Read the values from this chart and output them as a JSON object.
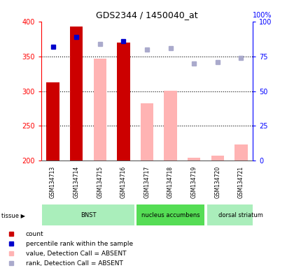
{
  "title": "GDS2344 / 1450040_at",
  "samples": [
    "GSM134713",
    "GSM134714",
    "GSM134715",
    "GSM134716",
    "GSM134717",
    "GSM134718",
    "GSM134719",
    "GSM134720",
    "GSM134721"
  ],
  "count_present": [
    313,
    393,
    null,
    370,
    null,
    null,
    null,
    null,
    null
  ],
  "count_absent": [
    null,
    null,
    347,
    null,
    283,
    301,
    204,
    207,
    223
  ],
  "rank_present_pct": [
    82,
    89,
    null,
    86,
    null,
    null,
    null,
    null,
    null
  ],
  "rank_absent_pct": [
    null,
    null,
    84,
    null,
    80,
    81,
    70,
    71,
    74
  ],
  "ylim_left": [
    200,
    400
  ],
  "yticks_left": [
    200,
    250,
    300,
    350,
    400
  ],
  "yticks_right": [
    0,
    25,
    50,
    75,
    100
  ],
  "count_color_present": "#cc0000",
  "count_color_absent": "#ffb3b3",
  "rank_color_present": "#0000cc",
  "rank_color_absent": "#aaaacc",
  "tissues": [
    {
      "label": "BNST",
      "start": 0,
      "end": 4,
      "color": "#aaeebb"
    },
    {
      "label": "nucleus accumbens",
      "start": 4,
      "end": 7,
      "color": "#55dd55"
    },
    {
      "label": "dorsal striatum",
      "start": 7,
      "end": 10,
      "color": "#aaeebb"
    }
  ],
  "legend_labels": [
    "count",
    "percentile rank within the sample",
    "value, Detection Call = ABSENT",
    "rank, Detection Call = ABSENT"
  ],
  "legend_colors": [
    "#cc0000",
    "#0000cc",
    "#ffb3b3",
    "#aaaacc"
  ]
}
